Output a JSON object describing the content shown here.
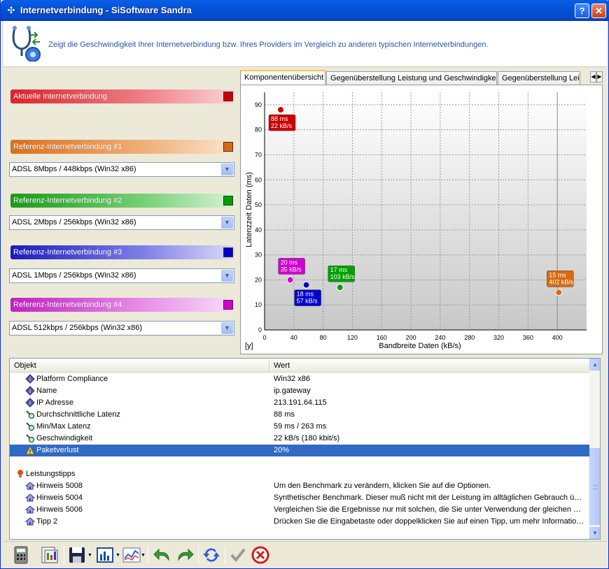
{
  "window": {
    "title": "Internetverbindung - SiSoftware Sandra",
    "help_label": "?",
    "close_label": "✕"
  },
  "header": {
    "description": "Zeigt die Geschwindigkeit Ihrer Internetverbindung bzw. Ihres Providers im Vergleich zu anderen typischen Internetverbindungen."
  },
  "connections": {
    "current": {
      "label": "Aktuelle Internetverbindung",
      "color": "#cc0000"
    },
    "refs": [
      {
        "label": "Referenz-Internetverbindung #1",
        "color": "#d86a10",
        "selected": "ADSL 8Mbps / 448kbps (Win32 x86)"
      },
      {
        "label": "Referenz-Internetverbindung #2",
        "color": "#00a000",
        "selected": "ADSL 2Mbps / 256kbps (Win32 x86)"
      },
      {
        "label": "Referenz-Internetverbindung #3",
        "color": "#0000cc",
        "selected": "ADSL 1Mbps / 256kbps (Win32 x86)"
      },
      {
        "label": "Referenz-Internetverbindung #4",
        "color": "#d000d0",
        "selected": "ADSL 512kbps / 256kbps (Win32 x86)"
      }
    ]
  },
  "tabs": [
    {
      "label": "Komponentenübersicht",
      "active": true
    },
    {
      "label": "Gegenüberstellung Leistung und Geschwindigkeit",
      "active": false
    },
    {
      "label": "Gegenüberstellung Leis",
      "active": false
    }
  ],
  "chart_data": {
    "type": "scatter",
    "xlabel": "Bandbreite Daten (kB/s)",
    "ylabel": "Latenzzeit Daten (ms)",
    "corner_label": "[y]",
    "xlim": [
      0,
      440
    ],
    "ylim": [
      0,
      95
    ],
    "x_ticks": [
      0,
      40,
      80,
      120,
      160,
      200,
      240,
      280,
      320,
      360,
      400
    ],
    "y_ticks": [
      0,
      10,
      20,
      30,
      40,
      50,
      60,
      70,
      80,
      90
    ],
    "grid": true,
    "points": [
      {
        "x": 22,
        "y": 88,
        "label_lines": [
          "88 ms",
          "22 kB/s"
        ],
        "color": "#cc0000",
        "label_pos": "below"
      },
      {
        "x": 35,
        "y": 20,
        "label_lines": [
          "20 ms",
          "35 kB/s"
        ],
        "color": "#d000d0",
        "label_pos": "above"
      },
      {
        "x": 57,
        "y": 18,
        "label_lines": [
          "18 ms",
          "57 kB/s"
        ],
        "color": "#0000cc",
        "label_pos": "below"
      },
      {
        "x": 103,
        "y": 17,
        "label_lines": [
          "17 ms",
          "103 kB/s"
        ],
        "color": "#00a000",
        "label_pos": "above"
      },
      {
        "x": 402,
        "y": 15,
        "label_lines": [
          "15 ms",
          "402 kB/s"
        ],
        "color": "#d86a10",
        "label_pos": "above"
      }
    ]
  },
  "list": {
    "col_object": "Objekt",
    "col_value": "Wert",
    "rows": [
      {
        "icon": "info-diamond-icon",
        "obj": "Platform Compliance",
        "val": "Win32 x86"
      },
      {
        "icon": "info-diamond-icon",
        "obj": "Name",
        "val": "ip.gateway"
      },
      {
        "icon": "info-diamond-icon",
        "obj": "IP Adresse",
        "val": "213.191.64.115"
      },
      {
        "icon": "magnifier-icon",
        "obj": "Durchschnittliche Latenz",
        "val": "88 ms"
      },
      {
        "icon": "magnifier-icon",
        "obj": "Min/Max Latenz",
        "val": "59 ms / 263 ms"
      },
      {
        "icon": "magnifier-icon",
        "obj": "Geschwindigkeit",
        "val": "22 kB/s (180 kbit/s)"
      },
      {
        "icon": "warning-icon",
        "obj": "Paketverlust",
        "val": "20%",
        "selected": true
      },
      {
        "icon": "",
        "obj": "",
        "val": ""
      },
      {
        "icon": "lightbulb-icon",
        "obj": "Leistungstipps",
        "val": "",
        "group": true
      },
      {
        "icon": "house-icon",
        "obj": "Hinweis 5008",
        "val": "Um den Benchmark zu verändern, klicken Sie auf die Optionen."
      },
      {
        "icon": "house-icon",
        "obj": "Hinweis 5004",
        "val": "Synthetischer Benchmark. Dieser muß nicht mit der Leistung im alltäglichen Gebrauch über..."
      },
      {
        "icon": "house-icon",
        "obj": "Hinweis 5006",
        "val": "Vergleichen Sie die Ergebnisse nur mit solchen, die Sie unter Verwendung der gleichen Ver..."
      },
      {
        "icon": "house-icon",
        "obj": "Tipp 2",
        "val": "Drücken Sie die Eingabetaste oder doppelklicken Sie auf einen Tipp, um mehr Informatione..."
      }
    ]
  },
  "toolbar": {
    "buttons": [
      "calculator-icon",
      "report-icon",
      "save-icon",
      "chart-icon",
      "graph-icon",
      "undo-icon",
      "redo-icon",
      "refresh-icon",
      "ok-icon",
      "cancel-icon"
    ]
  }
}
